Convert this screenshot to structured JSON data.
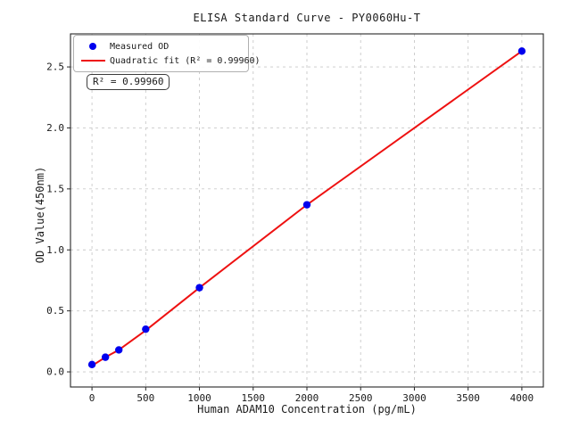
{
  "chart_data": {
    "type": "scatter",
    "title": "ELISA Standard Curve - PY0060Hu-T",
    "xlabel": "Human ADAM10 Concentration (pg/mL)",
    "ylabel": "OD Value(450nm)",
    "x": [
      0,
      125,
      250,
      500,
      1000,
      2000,
      4000
    ],
    "series": [
      {
        "name": "Measured OD",
        "type": "scatter",
        "marker": "circle",
        "color": "#0000ee",
        "y": [
          0.06,
          0.12,
          0.18,
          0.35,
          0.69,
          1.37,
          2.63
        ]
      },
      {
        "name": "Quadratic fit (R² = 0.99960)",
        "type": "line",
        "color": "#ee1111",
        "y": [
          0.05,
          0.12,
          0.18,
          0.34,
          0.69,
          1.37,
          2.63
        ]
      }
    ],
    "r_squared": 0.9996,
    "xlim": [
      -200,
      4200
    ],
    "ylim": [
      -0.124,
      2.771
    ],
    "xticks": [
      0,
      500,
      1000,
      1500,
      2000,
      2500,
      3000,
      3500,
      4000
    ],
    "xtick_labels": [
      "0",
      "500",
      "1000",
      "1500",
      "2000",
      "2500",
      "3000",
      "3500",
      "4000"
    ],
    "yticks": [
      0,
      0.5,
      1.0,
      1.5,
      2.0,
      2.5
    ],
    "ytick_labels": [
      "0.0",
      "0.5",
      "1.0",
      "1.5",
      "2.0",
      "2.5"
    ],
    "grid": true,
    "grid_style": "dashed",
    "legend": {
      "position": "upper-left",
      "entries": [
        {
          "label": "Measured OD",
          "marker": "dot",
          "color": "#0000ee"
        },
        {
          "label": "Quadratic fit (R² = 0.99960)",
          "marker": "line",
          "color": "#ee1111"
        }
      ]
    },
    "annotation": "R² = 0.99960",
    "colors": {
      "grid": "#c9c9c9",
      "spine": "#262626",
      "text": "#1a1a1a",
      "background": "#ffffff"
    }
  }
}
